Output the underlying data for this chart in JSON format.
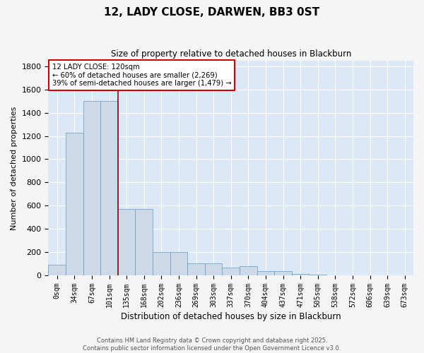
{
  "title": "12, LADY CLOSE, DARWEN, BB3 0ST",
  "subtitle": "Size of property relative to detached houses in Blackburn",
  "xlabel": "Distribution of detached houses by size in Blackburn",
  "ylabel": "Number of detached properties",
  "bar_color": "#ccd9e8",
  "bar_edge_color": "#6699bb",
  "background_color": "#dce8f5",
  "grid_color": "#ffffff",
  "fig_facecolor": "#f5f5f5",
  "categories": [
    "0sqm",
    "34sqm",
    "67sqm",
    "101sqm",
    "135sqm",
    "168sqm",
    "202sqm",
    "236sqm",
    "269sqm",
    "303sqm",
    "337sqm",
    "370sqm",
    "404sqm",
    "437sqm",
    "471sqm",
    "505sqm",
    "538sqm",
    "572sqm",
    "606sqm",
    "639sqm",
    "673sqm"
  ],
  "values": [
    90,
    1230,
    1500,
    1500,
    570,
    570,
    200,
    200,
    105,
    105,
    65,
    80,
    35,
    35,
    15,
    5,
    3,
    1,
    1,
    0,
    0
  ],
  "ylim": [
    0,
    1850
  ],
  "yticks": [
    0,
    200,
    400,
    600,
    800,
    1000,
    1200,
    1400,
    1600,
    1800
  ],
  "annotation_line1": "12 LADY CLOSE: 120sqm",
  "annotation_line2": "← 60% of detached houses are smaller (2,269)",
  "annotation_line3": "39% of semi-detached houses are larger (1,479) →",
  "vline_color": "#990000",
  "vline_x_idx": 3.5,
  "footer1": "Contains HM Land Registry data © Crown copyright and database right 2025.",
  "footer2": "Contains public sector information licensed under the Open Government Licence v3.0.",
  "figsize": [
    6.0,
    5.0
  ],
  "dpi": 100
}
